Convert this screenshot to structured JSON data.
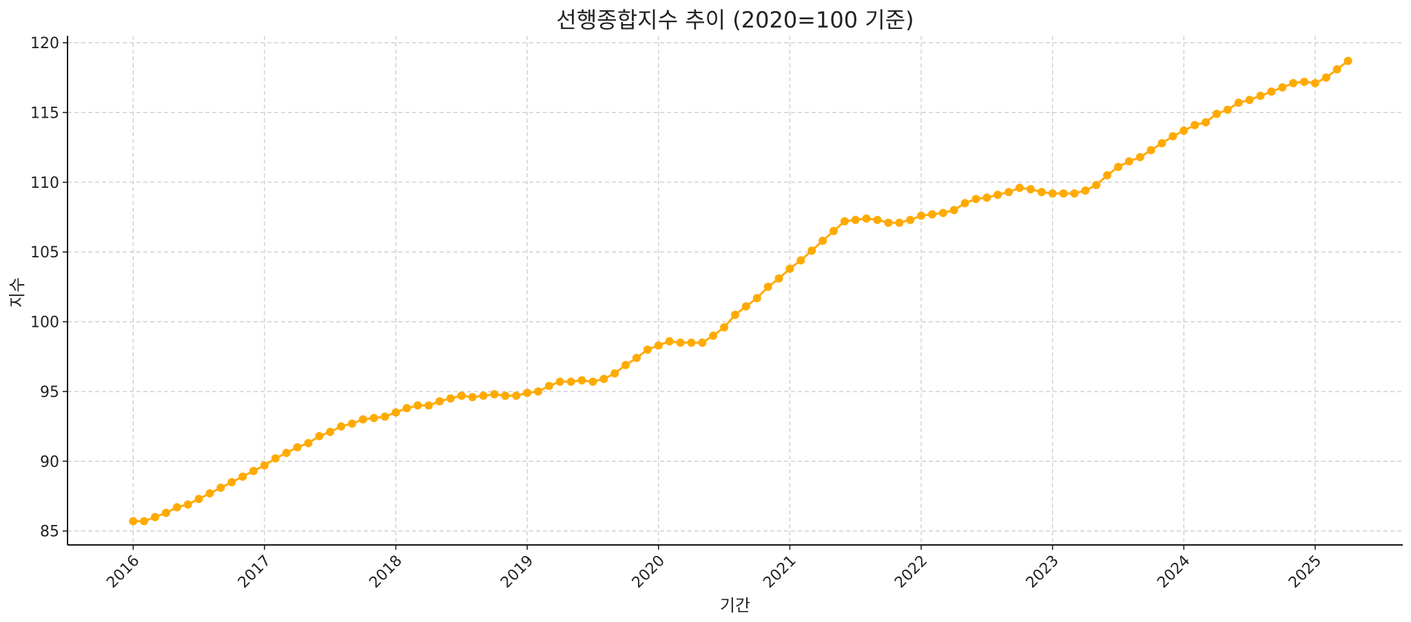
{
  "chart_data": {
    "type": "line",
    "title": "선행종합지수 추이 (2020=100 기준)",
    "xlabel": "기간",
    "ylabel": "지수",
    "x_start": "2016-01",
    "x_frequency": "monthly",
    "xlim": [
      "2015-07",
      "2025-09"
    ],
    "ylim": [
      84,
      120.5
    ],
    "x_ticks": [
      "2016",
      "2017",
      "2018",
      "2019",
      "2020",
      "2021",
      "2022",
      "2023",
      "2024",
      "2025"
    ],
    "y_ticks": [
      85,
      90,
      95,
      100,
      105,
      110,
      115,
      120
    ],
    "grid": true,
    "color": "#ffaa00",
    "series": [
      {
        "values": [
          85.7,
          85.7,
          86.0,
          86.3,
          86.7,
          86.9,
          87.3,
          87.7,
          88.1,
          88.5,
          88.9,
          89.3,
          89.7,
          90.2,
          90.6,
          91.0,
          91.3,
          91.8,
          92.1,
          92.5,
          92.7,
          93.0,
          93.1,
          93.2,
          93.5,
          93.8,
          94.0,
          94.0,
          94.3,
          94.5,
          94.7,
          94.6,
          94.7,
          94.8,
          94.7,
          94.7,
          94.9,
          95.0,
          95.4,
          95.7,
          95.7,
          95.8,
          95.7,
          95.9,
          96.3,
          96.9,
          97.4,
          98.0,
          98.3,
          98.6,
          98.5,
          98.5,
          98.5,
          99.0,
          99.6,
          100.5,
          101.1,
          101.7,
          102.5,
          103.1,
          103.8,
          104.4,
          105.1,
          105.8,
          106.5,
          107.2,
          107.3,
          107.4,
          107.3,
          107.1,
          107.1,
          107.3,
          107.6,
          107.7,
          107.8,
          108.0,
          108.5,
          108.8,
          108.9,
          109.1,
          109.3,
          109.6,
          109.5,
          109.3,
          109.2,
          109.2,
          109.2,
          109.4,
          109.8,
          110.5,
          111.1,
          111.5,
          111.8,
          112.3,
          112.8,
          113.3,
          113.7,
          114.1,
          114.3,
          114.9,
          115.2,
          115.7,
          115.9,
          116.2,
          116.5,
          116.8,
          117.1,
          117.2,
          117.1,
          117.5,
          118.1,
          118.7
        ]
      }
    ]
  }
}
